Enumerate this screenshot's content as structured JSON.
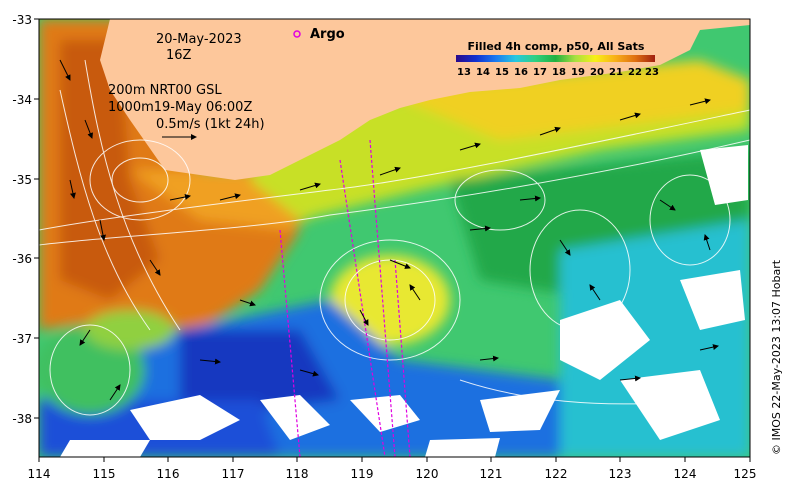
{
  "map": {
    "date_line": "20-May-2023",
    "time_line": "16Z",
    "argo_label": "Argo",
    "current_lines": [
      "200m  NRT00 GSL",
      "1000m19-May 06:00Z"
    ],
    "scale_label": "0.5m/s (1kt 24h)",
    "colorbar_title": "Filled 4h comp, p50, All Sats",
    "colorbar_ticks": [
      "13",
      "14",
      "15",
      "16",
      "17",
      "18",
      "19",
      "20",
      "21",
      "22",
      "23"
    ],
    "x_ticks": [
      "114",
      "115",
      "116",
      "117",
      "118",
      "119",
      "120",
      "121",
      "122",
      "123",
      "124",
      "125"
    ],
    "y_ticks": [
      "-33",
      "-34",
      "-35",
      "-36",
      "-37",
      "-38"
    ],
    "credit": "© IMOS 22-May-2023 13:07 Hobart",
    "colors": {
      "land": "#fdc79b",
      "argo": "#e000e0",
      "scale": [
        "#2a0a8a",
        "#1030d0",
        "#1a7af0",
        "#28c8e0",
        "#30d080",
        "#20b040",
        "#a8e040",
        "#f8f018",
        "#f8b018",
        "#e07010",
        "#a02010"
      ]
    },
    "icons": [
      "argo-marker-icon",
      "velocity-arrow-icon"
    ]
  }
}
